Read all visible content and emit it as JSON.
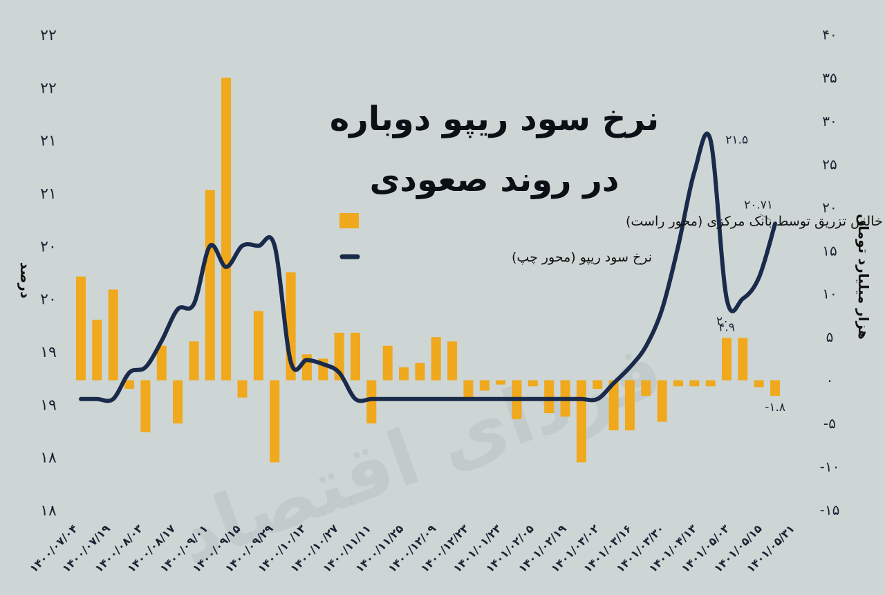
{
  "chart_data": {
    "type": "bar+line",
    "title_line1": "نرخ سود ریپو دوباره",
    "title_line2": "در روند صعودی",
    "legend": [
      {
        "label": "خالص تزریق توسط بانک مرکزی (محور راست)",
        "color": "#f0a81c",
        "kind": "bar"
      },
      {
        "label": "نرخ سود ریپو (محور چپ)",
        "color": "#1a2a4a",
        "kind": "line"
      }
    ],
    "y_left_label": "درصد",
    "y_right_label": "هزار میلیارد تومان",
    "y_left_ticks": [
      "۲۲",
      "۲۲",
      "۲۱",
      "۲۱",
      "۲۰",
      "۲۰",
      "۱۹",
      "۱۹",
      "۱۸",
      "۱۸"
    ],
    "y_left_range": [
      18,
      22.5
    ],
    "y_right_ticks": [
      "۴۰",
      "۳۵",
      "۳۰",
      "۲۵",
      "۲۰",
      "۱۵",
      "۱۰",
      "۵",
      "۰",
      "-۵",
      "-۱۰",
      "-۱۵"
    ],
    "y_right_range": [
      -15,
      40
    ],
    "x_tick_labels": [
      "۱۴۰۰/۰۷/۰۴",
      "۱۴۰۰/۰۷/۱۹",
      "۱۴۰۰/۰۸/۰۳",
      "۱۴۰۰/۰۸/۱۷",
      "۱۴۰۰/۰۹/۰۱",
      "۱۴۰۰/۰۹/۱۵",
      "۱۴۰۰/۰۹/۲۹",
      "۱۴۰۰/۱۰/۱۳",
      "۱۴۰۰/۱۰/۲۷",
      "۱۴۰۰/۱۱/۱۱",
      "۱۴۰۰/۱۱/۲۵",
      "۱۴۰۰/۱۲/۰۹",
      "۱۴۰۰/۱۲/۲۳",
      "۱۴۰۱/۰۱/۲۳",
      "۱۴۰۱/۰۲/۰۵",
      "۱۴۰۱/۰۲/۱۹",
      "۱۴۰۱/۰۳/۰۲",
      "۱۴۰۱/۰۳/۱۶",
      "۱۴۰۱/۰۳/۳۰",
      "۱۴۰۱/۰۴/۱۳",
      "۱۴۰۱/۰۵/۰۳",
      "۱۴۰۱/۰۵/۱۵",
      "۱۴۰۱/۰۵/۳۱"
    ],
    "bar_values": [
      12,
      7,
      10.5,
      -1,
      -6,
      4,
      -5,
      4.5,
      22,
      35,
      -2,
      8,
      -9.5,
      12.5,
      3,
      2.5,
      5.5,
      5.5,
      -5,
      4,
      1.5,
      2,
      5,
      4.5,
      -2,
      -1.2,
      -0.5,
      -4.5,
      -0.7,
      -3.8,
      -4.2,
      -9.5,
      -1,
      -5.8,
      -5.8,
      -1.8,
      -4.8,
      -0.7,
      -0.7,
      -0.7,
      4.9,
      4.9,
      -0.8,
      -1.8
    ],
    "line_values": [
      19.05,
      19.05,
      19.05,
      19.3,
      19.35,
      19.6,
      19.9,
      19.95,
      20.5,
      20.3,
      20.5,
      20.5,
      20.5,
      19.4,
      19.42,
      19.38,
      19.3,
      19.05,
      19.05,
      19.05,
      19.05,
      19.05,
      19.05,
      19.05,
      19.05,
      19.05,
      19.05,
      19.05,
      19.05,
      19.05,
      19.05,
      19.05,
      19.05,
      19.2,
      19.35,
      19.55,
      19.9,
      20.5,
      21.2,
      21.5,
      20.0,
      20.0,
      20.2,
      20.71
    ],
    "annotations": [
      {
        "label": "۲۱.۵",
        "series": "line",
        "index": 39
      },
      {
        "label": "۲۰",
        "series": "line",
        "index": 40
      },
      {
        "label": "۲۰.۷۱",
        "series": "line",
        "index": 43
      },
      {
        "label": "۴.۹",
        "series": "bar",
        "index": 40
      },
      {
        "label": "-۱.۸",
        "series": "bar",
        "index": 43
      }
    ],
    "watermark": "فردای اقتصاد"
  }
}
